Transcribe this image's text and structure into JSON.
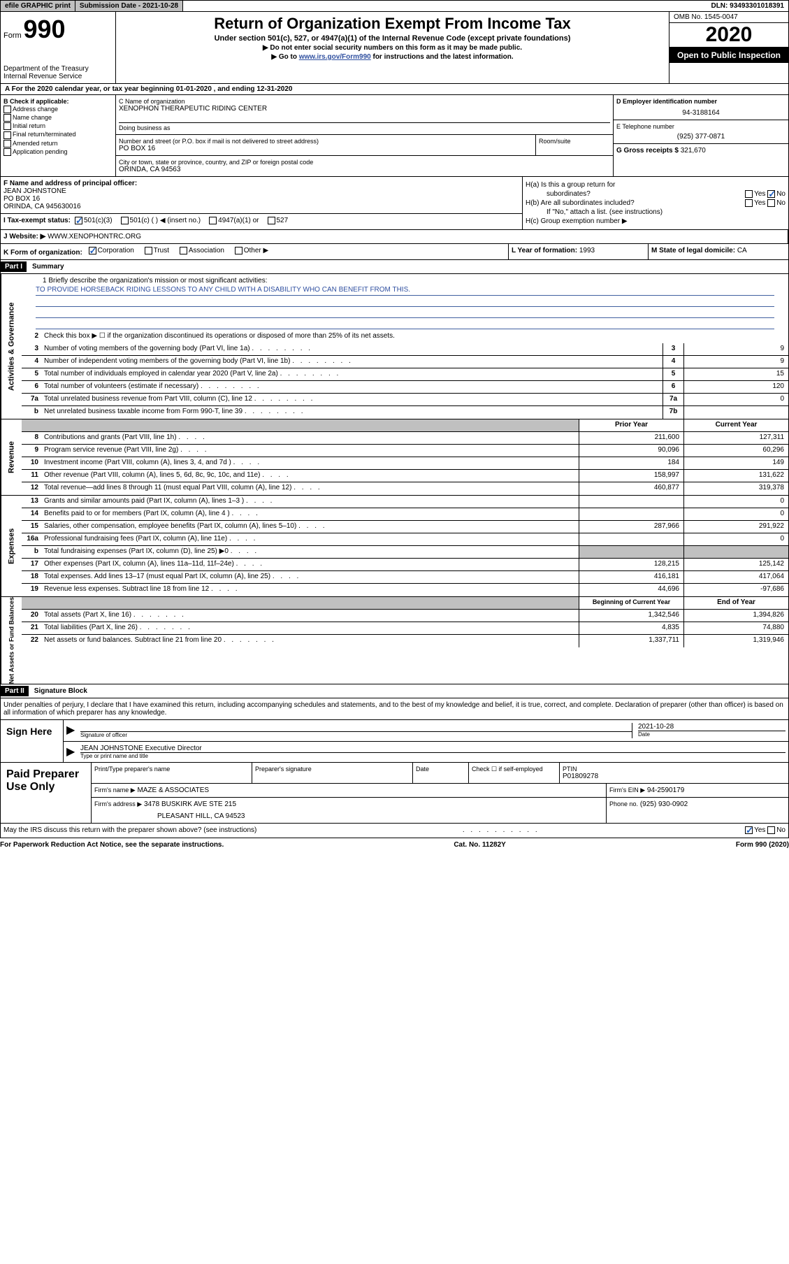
{
  "topbar": {
    "efile": "efile GRAPHIC print",
    "submission": "Submission Date - 2021-10-28",
    "dln": "DLN: 93493301018391"
  },
  "header": {
    "form_label": "Form",
    "form_number": "990",
    "dept": "Department of the Treasury",
    "irs": "Internal Revenue Service",
    "title": "Return of Organization Exempt From Income Tax",
    "subtitle": "Under section 501(c), 527, or 4947(a)(1) of the Internal Revenue Code (except private foundations)",
    "note1": "▶ Do not enter social security numbers on this form as it may be made public.",
    "note2_pre": "▶ Go to ",
    "note2_link": "www.irs.gov/Form990",
    "note2_post": " for instructions and the latest information.",
    "omb": "OMB No. 1545-0047",
    "year": "2020",
    "inspection": "Open to Public Inspection"
  },
  "rowA": "A For the 2020 calendar year, or tax year beginning 01-01-2020    , and ending 12-31-2020",
  "sectionB": {
    "label": "B Check if applicable:",
    "opts": [
      "Address change",
      "Name change",
      "Initial return",
      "Final return/terminated",
      "Amended return",
      "Application pending"
    ]
  },
  "sectionC": {
    "name_label": "C Name of organization",
    "name": "XENOPHON THERAPEUTIC RIDING CENTER",
    "dba_label": "Doing business as",
    "street_label": "Number and street (or P.O. box if mail is not delivered to street address)",
    "street": "PO BOX 16",
    "room_label": "Room/suite",
    "city_label": "City or town, state or province, country, and ZIP or foreign postal code",
    "city": "ORINDA, CA  94563"
  },
  "sectionD": {
    "ein_label": "D Employer identification number",
    "ein": "94-3188164",
    "phone_label": "E Telephone number",
    "phone": "(925) 377-0871",
    "gross_label": "G Gross receipts $",
    "gross": "321,670"
  },
  "sectionF": {
    "label": "F Name and address of principal officer:",
    "name": "JEAN JOHNSTONE",
    "addr1": "PO BOX 16",
    "addr2": "ORINDA, CA  945630016"
  },
  "sectionH": {
    "ha_label": "H(a)  Is this a group return for",
    "ha_sub": "subordinates?",
    "hb_label": "H(b)  Are all subordinates included?",
    "hb_note": "If \"No,\" attach a list. (see instructions)",
    "hc_label": "H(c)  Group exemption number ▶",
    "yes": "Yes",
    "no": "No"
  },
  "sectionI": {
    "label": "I  Tax-exempt status:",
    "opt1": "501(c)(3)",
    "opt2": "501(c) (   ) ◀ (insert no.)",
    "opt3": "4947(a)(1) or",
    "opt4": "527"
  },
  "sectionJ": {
    "label": "J  Website: ▶",
    "value": "WWW.XENOPHONTRC.ORG"
  },
  "sectionK": {
    "label": "K Form of organization:",
    "corp": "Corporation",
    "trust": "Trust",
    "assoc": "Association",
    "other": "Other ▶",
    "l_label": "L Year of formation:",
    "l_val": "1993",
    "m_label": "M State of legal domicile:",
    "m_val": "CA"
  },
  "part1": {
    "header": "Part I",
    "title": "Summary",
    "mission_label": "1   Briefly describe the organization's mission or most significant activities:",
    "mission": "TO PROVIDE HORSEBACK RIDING LESSONS TO ANY CHILD WITH A DISABILITY WHO CAN BENEFIT FROM THIS.",
    "line2": "Check this box ▶ ☐  if the organization discontinued its operations or disposed of more than 25% of its net assets.",
    "lines_gov": [
      {
        "n": "3",
        "t": "Number of voting members of the governing body (Part VI, line 1a)",
        "box": "3",
        "v": "9"
      },
      {
        "n": "4",
        "t": "Number of independent voting members of the governing body (Part VI, line 1b)",
        "box": "4",
        "v": "9"
      },
      {
        "n": "5",
        "t": "Total number of individuals employed in calendar year 2020 (Part V, line 2a)",
        "box": "5",
        "v": "15"
      },
      {
        "n": "6",
        "t": "Total number of volunteers (estimate if necessary)",
        "box": "6",
        "v": "120"
      },
      {
        "n": "7a",
        "t": "Total unrelated business revenue from Part VIII, column (C), line 12",
        "box": "7a",
        "v": "0"
      },
      {
        "n": "b",
        "t": "Net unrelated business taxable income from Form 990-T, line 39",
        "box": "7b",
        "v": ""
      }
    ],
    "col_prior": "Prior Year",
    "col_current": "Current Year",
    "revenue": [
      {
        "n": "8",
        "t": "Contributions and grants (Part VIII, line 1h)",
        "p": "211,600",
        "c": "127,311"
      },
      {
        "n": "9",
        "t": "Program service revenue (Part VIII, line 2g)",
        "p": "90,096",
        "c": "60,296"
      },
      {
        "n": "10",
        "t": "Investment income (Part VIII, column (A), lines 3, 4, and 7d )",
        "p": "184",
        "c": "149"
      },
      {
        "n": "11",
        "t": "Other revenue (Part VIII, column (A), lines 5, 6d, 8c, 9c, 10c, and 11e)",
        "p": "158,997",
        "c": "131,622"
      },
      {
        "n": "12",
        "t": "Total revenue—add lines 8 through 11 (must equal Part VIII, column (A), line 12)",
        "p": "460,877",
        "c": "319,378"
      }
    ],
    "expenses": [
      {
        "n": "13",
        "t": "Grants and similar amounts paid (Part IX, column (A), lines 1–3 )",
        "p": "",
        "c": "0"
      },
      {
        "n": "14",
        "t": "Benefits paid to or for members (Part IX, column (A), line 4 )",
        "p": "",
        "c": "0"
      },
      {
        "n": "15",
        "t": "Salaries, other compensation, employee benefits (Part IX, column (A), lines 5–10)",
        "p": "287,966",
        "c": "291,922"
      },
      {
        "n": "16a",
        "t": "Professional fundraising fees (Part IX, column (A), line 11e)",
        "p": "",
        "c": "0"
      },
      {
        "n": "b",
        "t": "Total fundraising expenses (Part IX, column (D), line 25) ▶0",
        "p": "shaded",
        "c": "shaded"
      },
      {
        "n": "17",
        "t": "Other expenses (Part IX, column (A), lines 11a–11d, 11f–24e)",
        "p": "128,215",
        "c": "125,142"
      },
      {
        "n": "18",
        "t": "Total expenses. Add lines 13–17 (must equal Part IX, column (A), line 25)",
        "p": "416,181",
        "c": "417,064"
      },
      {
        "n": "19",
        "t": "Revenue less expenses. Subtract line 18 from line 12",
        "p": "44,696",
        "c": "-97,686"
      }
    ],
    "col_begin": "Beginning of Current Year",
    "col_end": "End of Year",
    "netassets": [
      {
        "n": "20",
        "t": "Total assets (Part X, line 16)",
        "p": "1,342,546",
        "c": "1,394,826"
      },
      {
        "n": "21",
        "t": "Total liabilities (Part X, line 26)",
        "p": "4,835",
        "c": "74,880"
      },
      {
        "n": "22",
        "t": "Net assets or fund balances. Subtract line 21 from line 20",
        "p": "1,337,711",
        "c": "1,319,946"
      }
    ],
    "side_gov": "Activities & Governance",
    "side_rev": "Revenue",
    "side_exp": "Expenses",
    "side_net": "Net Assets or Fund Balances"
  },
  "part2": {
    "header": "Part II",
    "title": "Signature Block",
    "perjury": "Under penalties of perjury, I declare that I have examined this return, including accompanying schedules and statements, and to the best of my knowledge and belief, it is true, correct, and complete. Declaration of preparer (other than officer) is based on all information of which preparer has any knowledge.",
    "sign_here": "Sign Here",
    "sig_officer": "Signature of officer",
    "sig_date": "2021-10-28",
    "date_label": "Date",
    "sig_name": "JEAN JOHNSTONE  Executive Director",
    "sig_name_label": "Type or print name and title"
  },
  "preparer": {
    "label": "Paid Preparer Use Only",
    "h_print": "Print/Type preparer's name",
    "h_sig": "Preparer's signature",
    "h_date": "Date",
    "h_check": "Check ☐ if self-employed",
    "h_ptin": "PTIN",
    "ptin": "P01809278",
    "firm_label": "Firm's name     ▶",
    "firm": "MAZE & ASSOCIATES",
    "ein_label": "Firm's EIN ▶",
    "ein": "94-2590179",
    "addr_label": "Firm's address ▶",
    "addr1": "3478 BUSKIRK AVE STE 215",
    "addr2": "PLEASANT HILL, CA  94523",
    "phone_label": "Phone no.",
    "phone": "(925) 930-0902"
  },
  "footer": {
    "discuss": "May the IRS discuss this return with the preparer shown above? (see instructions)",
    "yes": "Yes",
    "no": "No",
    "paperwork": "For Paperwork Reduction Act Notice, see the separate instructions.",
    "cat": "Cat. No. 11282Y",
    "form": "Form 990 (2020)"
  }
}
